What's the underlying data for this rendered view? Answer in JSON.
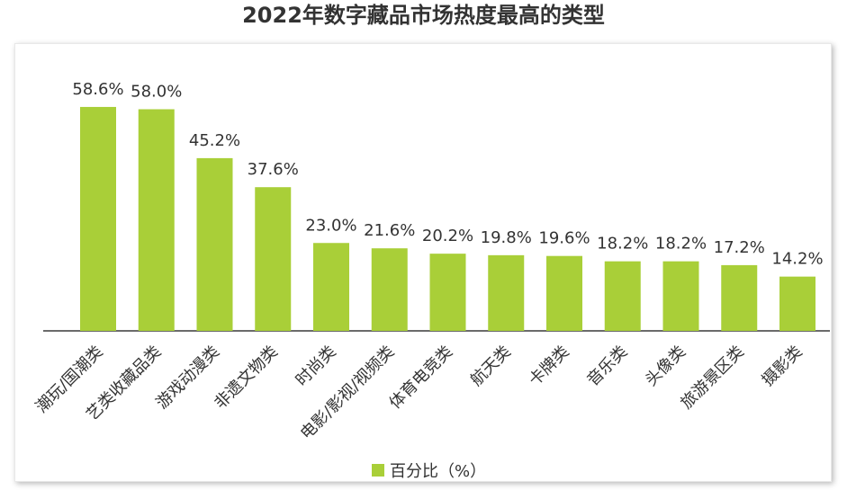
{
  "title": "2022年数字藏品市场热度最高的类型",
  "colors": {
    "bar": "#a9cf38",
    "axis": "#333333",
    "text": "#333333"
  },
  "legend": {
    "label": "百分比（%）"
  },
  "chart_data": {
    "type": "bar",
    "title": "2022年数字藏品市场热度最高的类型",
    "categories": [
      "潮玩/国潮类",
      "艺类收藏品类",
      "游戏动漫类",
      "非遗文物类",
      "时尚类",
      "电影/影视/视频类",
      "体育电竞类",
      "航天类",
      "卡牌类",
      "音乐类",
      "头像类",
      "旅游景区类",
      "摄影类"
    ],
    "series": [
      {
        "name": "百分比（%）",
        "values": [
          58.6,
          58.0,
          45.2,
          37.6,
          23.0,
          21.6,
          20.2,
          19.8,
          19.6,
          18.2,
          18.2,
          17.2,
          14.2
        ],
        "labels": [
          "58.6%",
          "58.0%",
          "45.2%",
          "37.6%",
          "23.0%",
          "21.6%",
          "20.2%",
          "19.8%",
          "19.6%",
          "18.2%",
          "18.2%",
          "17.2%",
          "14.2%"
        ]
      }
    ],
    "ylim": [
      0,
      60
    ],
    "grid": false,
    "legend_position": "bottom"
  }
}
